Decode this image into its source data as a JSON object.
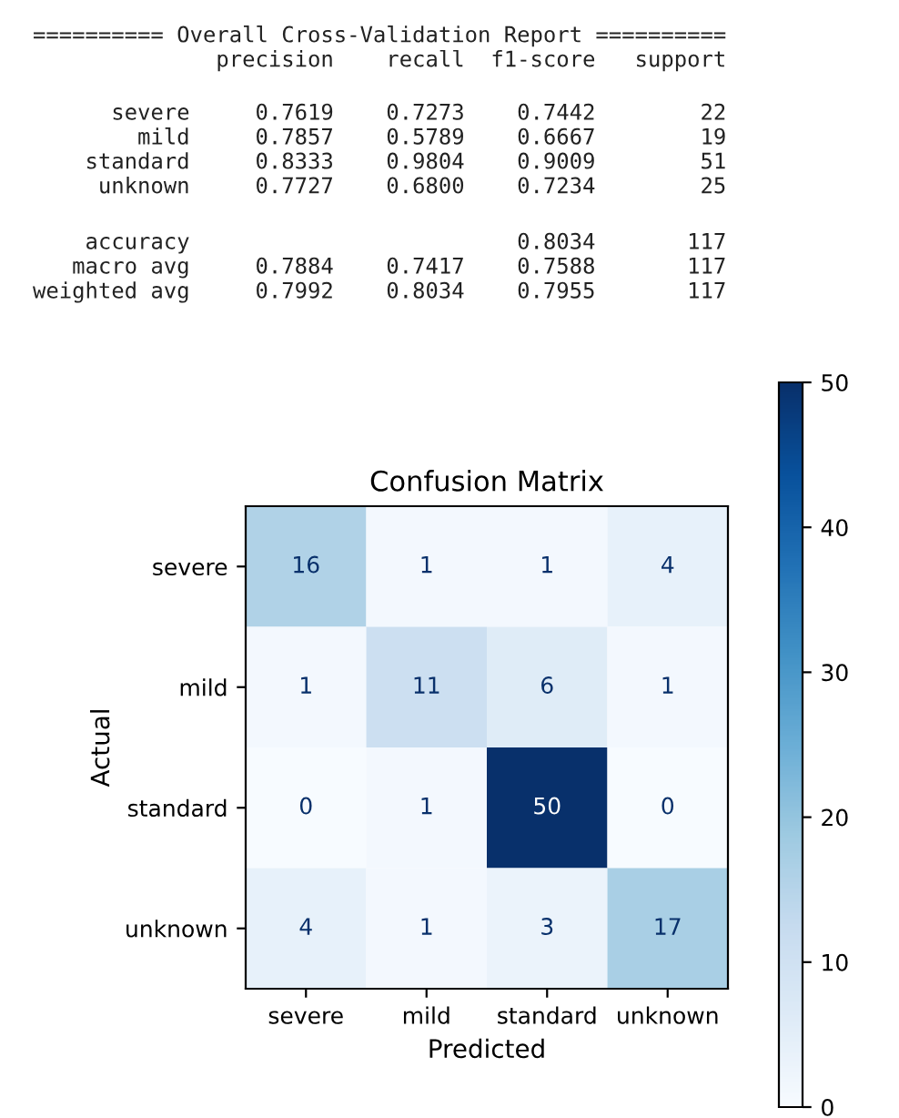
{
  "chart_data": [
    {
      "type": "other",
      "annotations": [
        "========== Overall Cross-Validation Report ==========\n              precision    recall  f1-score   support",
        "      severe     0.7619    0.7273    0.7442        22\n        mild     0.7857    0.5789    0.6667        19\n    standard     0.8333    0.9804    0.9009        51\n     unknown     0.7727    0.6800    0.7234        25",
        "    accuracy                         0.8034       117\n   macro avg     0.7884    0.7417    0.7588       117\nweighted avg     0.7992    0.8034    0.7955       117"
      ]
    },
    {
      "type": "heatmap",
      "title": "Confusion Matrix",
      "xlabel": "Predicted",
      "ylabel": "Actual",
      "categories": [
        "severe",
        "mild",
        "standard",
        "unknown"
      ],
      "y_categories": [
        "severe",
        "mild",
        "standard",
        "unknown"
      ],
      "cells": [
        [
          16,
          1,
          1,
          4
        ],
        [
          1,
          11,
          6,
          1
        ],
        [
          0,
          1,
          50,
          0
        ],
        [
          4,
          1,
          3,
          17
        ]
      ],
      "data_labels": true,
      "clim": [
        0,
        50
      ],
      "cticks": [
        0,
        10,
        20,
        30,
        40,
        50
      ]
    }
  ]
}
